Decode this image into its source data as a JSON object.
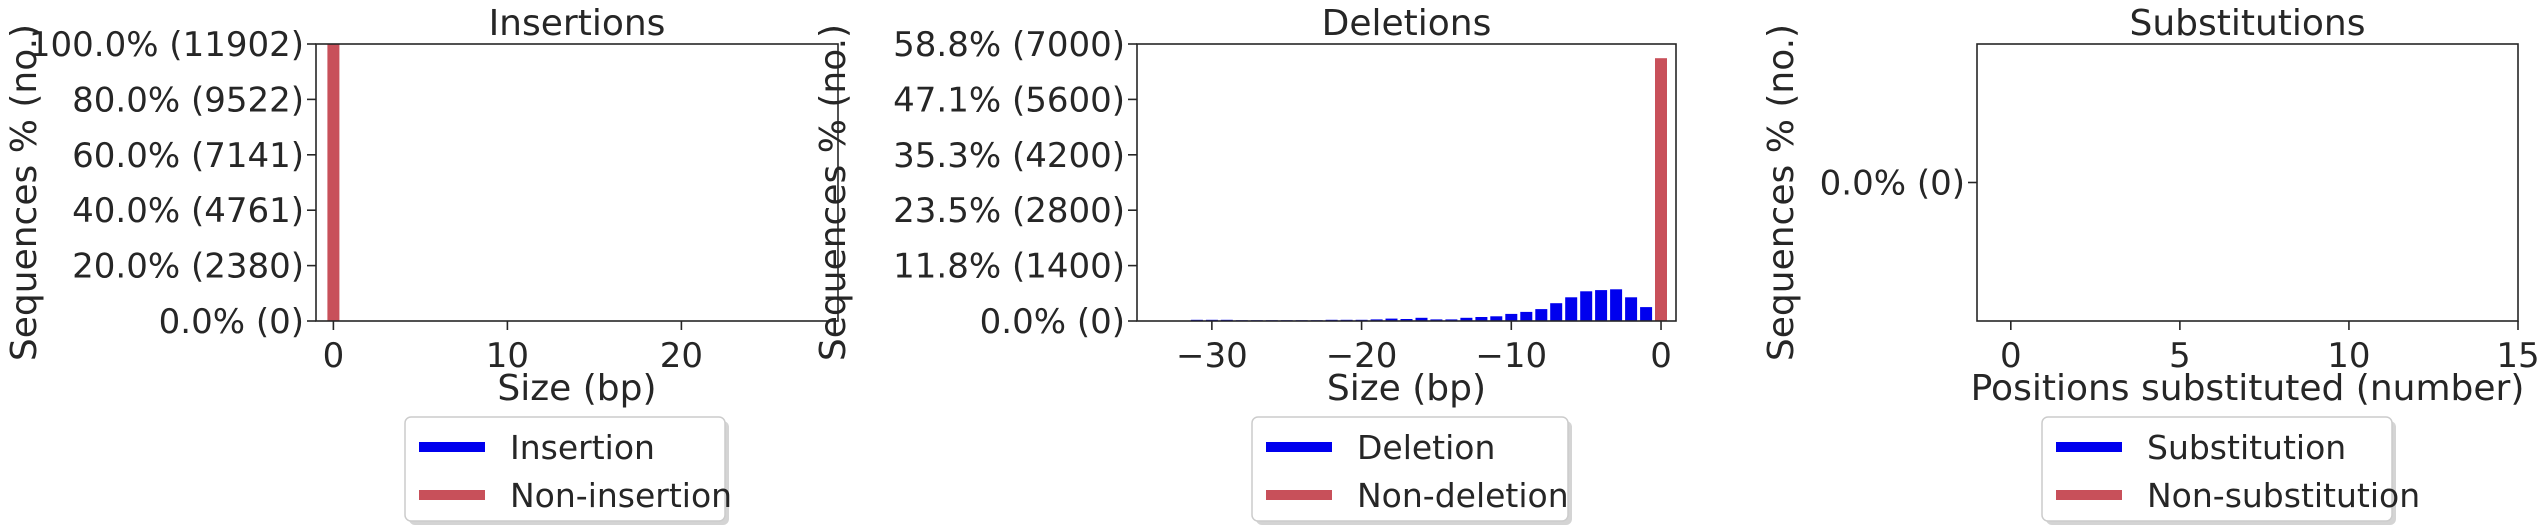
{
  "colors": {
    "modified": "#0000ee",
    "unmodified": "#c8505a",
    "frame": "#262626",
    "legend_frame": "#cccccc"
  },
  "chart_data": [
    {
      "type": "bar",
      "title": "Insertions",
      "xlabel": "Size (bp)",
      "ylabel": "Sequences % (no.)",
      "xlim": [
        -1,
        29
      ],
      "xticks": [
        0,
        10,
        20
      ],
      "ylim": [
        0,
        11902
      ],
      "yticks": [
        {
          "value": 0,
          "label": "0.0% (0)"
        },
        {
          "value": 2380,
          "label": "20.0% (2380)"
        },
        {
          "value": 4761,
          "label": "40.0% (4761)"
        },
        {
          "value": 7141,
          "label": "60.0% (7141)"
        },
        {
          "value": 9522,
          "label": "80.0% (9522)"
        },
        {
          "value": 11902,
          "label": "100.0% (11902)"
        }
      ],
      "series": [
        {
          "name": "Insertion",
          "color": "#0000ee",
          "x": [],
          "values": []
        },
        {
          "name": "Non-insertion",
          "color": "#c8505a",
          "x": [
            0
          ],
          "values": [
            11902
          ]
        }
      ],
      "legend": [
        "Insertion",
        "Non-insertion"
      ],
      "legend_position": "bottom-center",
      "grid": false
    },
    {
      "type": "bar",
      "title": "Deletions",
      "xlabel": "Size (bp)",
      "ylabel": "Sequences % (no.)",
      "xlim": [
        -35,
        1
      ],
      "xticks": [
        -30,
        -20,
        -10,
        0
      ],
      "xtick_labels": [
        "−30",
        "−20",
        "−10",
        "0"
      ],
      "ylim": [
        0,
        7000
      ],
      "yticks": [
        {
          "value": 0,
          "label": "0.0% (0)"
        },
        {
          "value": 1400,
          "label": "11.8% (1400)"
        },
        {
          "value": 2800,
          "label": "23.5% (2800)"
        },
        {
          "value": 4200,
          "label": "35.3% (4200)"
        },
        {
          "value": 5600,
          "label": "47.1% (5600)"
        },
        {
          "value": 7000,
          "label": "58.8% (7000)"
        }
      ],
      "series": [
        {
          "name": "Deletion",
          "color": "#0000ee",
          "x": [
            -31,
            -30,
            -29,
            -28,
            -27,
            -26,
            -25,
            -24,
            -23,
            -22,
            -21,
            -20,
            -19,
            -18,
            -17,
            -16,
            -15,
            -14,
            -13,
            -12,
            -11,
            -10,
            -9,
            -8,
            -7,
            -6,
            -5,
            -4,
            -3,
            -2,
            -1
          ],
          "values": [
            30,
            30,
            30,
            20,
            20,
            20,
            20,
            20,
            20,
            30,
            30,
            30,
            40,
            60,
            50,
            80,
            40,
            40,
            80,
            100,
            120,
            180,
            230,
            300,
            450,
            600,
            750,
            780,
            800,
            600,
            350
          ]
        },
        {
          "name": "Non-deletion",
          "color": "#c8505a",
          "x": [
            0
          ],
          "values": [
            6640
          ]
        }
      ],
      "legend": [
        "Deletion",
        "Non-deletion"
      ],
      "legend_position": "bottom-center",
      "grid": false
    },
    {
      "type": "bar",
      "title": "Substitutions",
      "xlabel": "Positions substituted (number)",
      "ylabel": "Sequences % (no.)",
      "xlim": [
        -1,
        15
      ],
      "xticks": [
        0,
        5,
        10,
        15
      ],
      "ylim": [
        -1,
        1
      ],
      "yticks": [
        {
          "value": 0,
          "label": "0.0% (0)"
        }
      ],
      "series": [
        {
          "name": "Substitution",
          "color": "#0000ee",
          "x": [],
          "values": []
        },
        {
          "name": "Non-substitution",
          "color": "#c8505a",
          "x": [],
          "values": []
        }
      ],
      "legend": [
        "Substitution",
        "Non-substitution"
      ],
      "legend_position": "bottom-center",
      "grid": false
    }
  ]
}
